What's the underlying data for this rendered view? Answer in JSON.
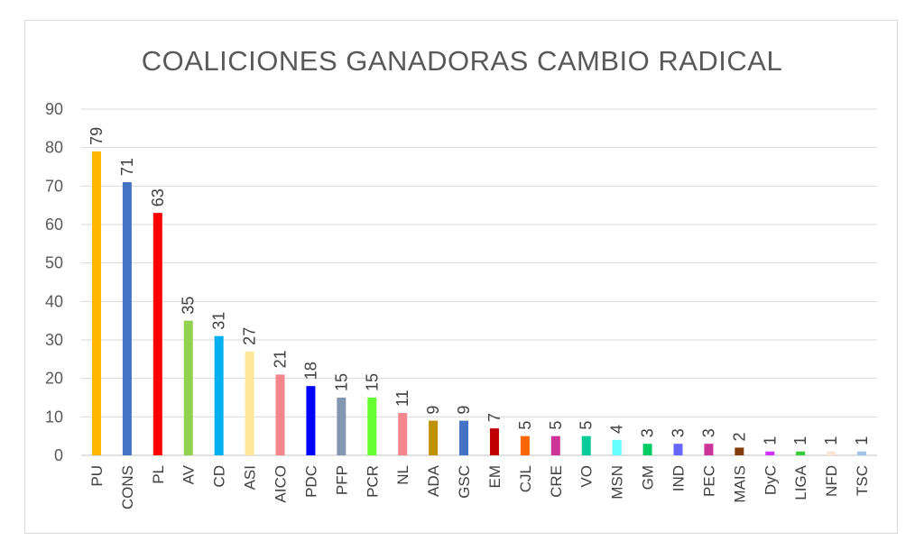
{
  "chart_data": {
    "type": "bar",
    "title": "COALICIONES GANADORAS CAMBIO RADICAL",
    "xlabel": "",
    "ylabel": "",
    "ylim": [
      0,
      90
    ],
    "yticks": [
      0,
      10,
      20,
      30,
      40,
      50,
      60,
      70,
      80,
      90
    ],
    "grid": true,
    "legend": "none",
    "categories": [
      "PU",
      "CONS",
      "PL",
      "AV",
      "CD",
      "ASI",
      "AICO",
      "PDC",
      "PFP",
      "PCR",
      "NL",
      "ADA",
      "GSC",
      "EM",
      "CJL",
      "CRE",
      "VO",
      "MSN",
      "GM",
      "IND",
      "PEC",
      "MAIS",
      "DyC",
      "LIGA",
      "NFD",
      "TSC"
    ],
    "values": [
      79,
      71,
      63,
      35,
      31,
      27,
      21,
      18,
      15,
      15,
      11,
      9,
      9,
      7,
      5,
      5,
      5,
      4,
      3,
      3,
      3,
      2,
      1,
      1,
      1,
      1
    ],
    "colors": [
      "#FFB800",
      "#4472C4",
      "#FF0000",
      "#92D050",
      "#00B0F0",
      "#FFE699",
      "#F4868C",
      "#0000FF",
      "#8497B0",
      "#66FF33",
      "#F4868C",
      "#BF9000",
      "#4472C4",
      "#C00000",
      "#FF6600",
      "#CC3399",
      "#00CC99",
      "#66FFFF",
      "#00CC66",
      "#6666FF",
      "#CC3399",
      "#843C0C",
      "#CC33FF",
      "#33CC33",
      "#FCE4D6",
      "#9DC3E6"
    ]
  }
}
